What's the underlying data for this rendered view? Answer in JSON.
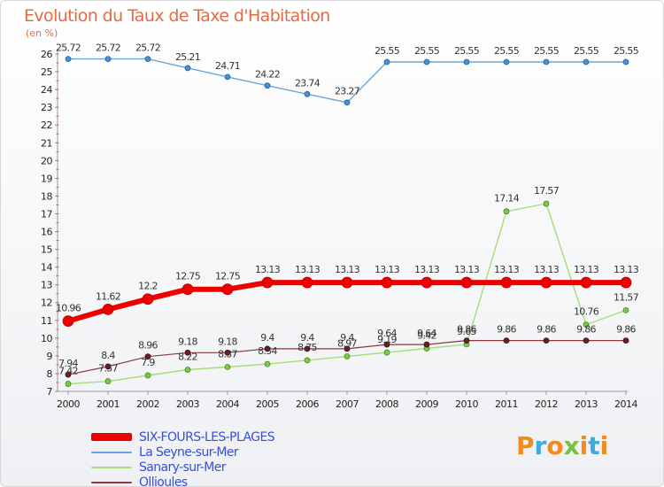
{
  "title": "Evolution du Taux de Taxe d'Habitation",
  "unit": "(en %)",
  "brand": {
    "text": "Proxiti",
    "colors": [
      "#f28a1c",
      "#3fa9e0",
      "#f28a1c",
      "#7ac142",
      "#f28a1c",
      "#3fa9e0",
      "#f28a1c"
    ]
  },
  "chart_data": {
    "type": "line",
    "x": [
      2000,
      2001,
      2002,
      2003,
      2004,
      2005,
      2006,
      2007,
      2008,
      2009,
      2010,
      2011,
      2012,
      2013,
      2014
    ],
    "ylim": [
      7,
      26
    ],
    "yticks": [
      7,
      8,
      9,
      10,
      11,
      12,
      13,
      14,
      15,
      16,
      17,
      18,
      19,
      20,
      21,
      22,
      23,
      24,
      25,
      26
    ],
    "grid": false,
    "legend_position": "bottom-left",
    "series": [
      {
        "name": "SIX-FOURS-LES-PLAGES",
        "color": "#ee0000",
        "values": [
          10.96,
          11.62,
          12.2,
          12.75,
          12.75,
          13.13,
          13.13,
          13.13,
          13.13,
          13.13,
          13.13,
          13.13,
          13.13,
          13.13,
          13.13
        ],
        "labels": [
          "10.96",
          "11.62",
          "12.2",
          "12.75",
          "12.75",
          "13.13",
          "13.13",
          "13.13",
          "13.13",
          "13.13",
          "13.13",
          "13.13",
          "13.13",
          "13.13",
          "13.13"
        ]
      },
      {
        "name": "La Seyne-sur-Mer",
        "color": "#5b9bd5",
        "values": [
          25.72,
          25.72,
          25.72,
          25.21,
          24.71,
          24.22,
          23.74,
          23.27,
          25.55,
          25.55,
          25.55,
          25.55,
          25.55,
          25.55,
          25.55
        ],
        "labels": [
          "25.72",
          "25.72",
          "25.72",
          "25.21",
          "24.71",
          "24.22",
          "23.74",
          "23.27",
          "25.55",
          "25.55",
          "25.55",
          "25.55",
          "25.55",
          "25.55",
          "25.55"
        ]
      },
      {
        "name": "Sanary-sur-Mer",
        "color": "#8ed05a",
        "values": [
          7.42,
          7.57,
          7.9,
          8.22,
          8.37,
          8.54,
          8.75,
          8.97,
          9.19,
          9.42,
          9.65,
          17.14,
          17.57,
          10.76,
          11.57
        ],
        "labels": [
          "7.42",
          "7.57",
          "7.9",
          "8.22",
          "8.37",
          "8.54",
          "8.75",
          "8.97",
          "9.19",
          "9.42",
          "9.65",
          "17.14",
          "17.57",
          "10.76",
          "11.57"
        ]
      },
      {
        "name": "Ollioules",
        "color": "#6b1f24",
        "values": [
          7.94,
          8.4,
          8.96,
          9.18,
          9.18,
          9.4,
          9.4,
          9.4,
          9.64,
          9.64,
          9.86,
          9.86,
          9.86,
          9.86,
          9.86
        ],
        "labels": [
          "7.94",
          "8.4",
          "8.96",
          "9.18",
          "9.18",
          "9.4",
          "9.4",
          "9.4",
          "9.64",
          "9.64",
          "9.86",
          "9.86",
          "9.86",
          "9.86",
          "9.86"
        ]
      }
    ]
  }
}
